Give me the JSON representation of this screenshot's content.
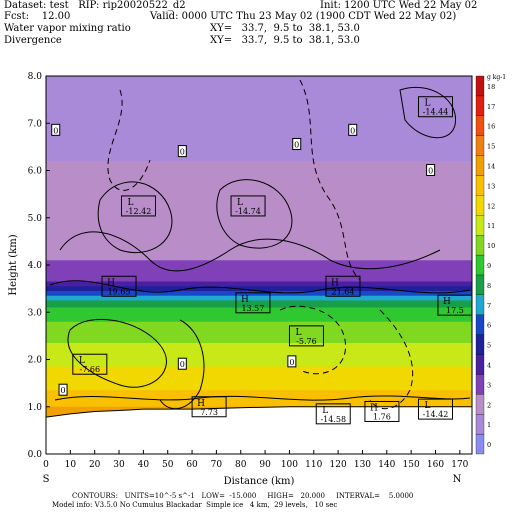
{
  "header": {
    "dataset_line": "Dataset: test   RIP: rip20020522_d2",
    "init_line": "Init: 1200 UTC Wed 22 May 02",
    "fcst_line": "Fcst:    12.00",
    "valid_line": "Valid: 0000 UTC Thu 23 May 02 (1900 CDT Wed 22 May 02)",
    "field1_name": "Water vapor mixing ratio",
    "field1_xy": "XY=   33.7,  9.5 to  38.1, 53.0",
    "field2_name": "Divergence",
    "field2_xy": "XY=   33.7,  9.5 to  38.1, 53.0"
  },
  "chart_data": {
    "type": "heatmap",
    "xlabel": "Distance (km)",
    "ylabel": "Height (km)",
    "xlim": [
      0,
      175
    ],
    "ylim": [
      0,
      8.0
    ],
    "x_ticks": [
      0,
      10,
      20,
      30,
      40,
      50,
      60,
      70,
      80,
      90,
      100,
      110,
      120,
      130,
      140,
      150,
      160,
      170
    ],
    "y_ticks": [
      "0.0",
      "1.0",
      "2.0",
      "3.0",
      "4.0",
      "5.0",
      "6.0",
      "7.0",
      "8.0"
    ],
    "endpoint_left": "S",
    "endpoint_right": "N",
    "colorbar": {
      "unit": "g kg-1",
      "levels": [
        0,
        1,
        2,
        3,
        4,
        5,
        6,
        7,
        8,
        9,
        10,
        11,
        12,
        13,
        14,
        15,
        16,
        17,
        18
      ],
      "colors": [
        "#8c8cf0",
        "#a88ad8",
        "#b98ec8",
        "#8040b8",
        "#4a20a0",
        "#20209a",
        "#1848c8",
        "#20a8d0",
        "#18a048",
        "#30c830",
        "#80d820",
        "#c8e818",
        "#f0d800",
        "#f8c000",
        "#f0a000",
        "#f08010",
        "#f05010",
        "#e02010",
        "#c01010"
      ]
    },
    "humidity_layers": [
      {
        "height_km": 8.0,
        "value": 0.5
      },
      {
        "height_km": 6.5,
        "value": 1.0
      },
      {
        "height_km": 6.2,
        "value": 2.0
      },
      {
        "height_km": 4.1,
        "value": 2.5
      },
      {
        "height_km": 3.75,
        "value": 3.0
      },
      {
        "height_km": 3.65,
        "value": 4.0
      },
      {
        "height_km": 3.55,
        "value": 5.0
      },
      {
        "height_km": 3.45,
        "value": 6.0
      },
      {
        "height_km": 3.35,
        "value": 7.0
      },
      {
        "height_km": 3.25,
        "value": 8.0
      },
      {
        "height_km": 3.1,
        "value": 9.0
      },
      {
        "height_km": 2.8,
        "value": 10.0
      },
      {
        "height_km": 2.35,
        "value": 11.0
      },
      {
        "height_km": 1.85,
        "value": 12.0
      },
      {
        "height_km": 1.35,
        "value": 13.0
      },
      {
        "height_km": 1.0,
        "value": 14.0
      }
    ],
    "terrain_km": [
      [
        0,
        0.78
      ],
      [
        10,
        0.85
      ],
      [
        20,
        0.9
      ],
      [
        30,
        0.92
      ],
      [
        40,
        0.95
      ],
      [
        60,
        0.95
      ],
      [
        80,
        0.98
      ],
      [
        100,
        1.0
      ],
      [
        120,
        1.0
      ],
      [
        140,
        1.0
      ],
      [
        160,
        1.0
      ],
      [
        170,
        1.0
      ]
    ],
    "extrema": [
      {
        "type": "L",
        "value": "-14.44",
        "x": 160,
        "y": 7.35
      },
      {
        "type": "L",
        "value": "-12.42",
        "x": 38,
        "y": 5.25
      },
      {
        "type": "L",
        "value": "-14.74",
        "x": 83,
        "y": 5.25
      },
      {
        "type": "H",
        "value": "19.65",
        "x": 30,
        "y": 3.55
      },
      {
        "type": "H",
        "value": "21.64",
        "x": 122,
        "y": 3.55
      },
      {
        "type": "H",
        "value": "13.57",
        "x": 85,
        "y": 3.2
      },
      {
        "type": "H",
        "value": "17.5",
        "x": 168,
        "y": 3.15
      },
      {
        "type": "L",
        "value": "-5.76",
        "x": 107,
        "y": 2.5
      },
      {
        "type": "L",
        "value": "-7.66",
        "x": 18,
        "y": 1.9
      },
      {
        "type": "H",
        "value": "7.73",
        "x": 67,
        "y": 1.0
      },
      {
        "type": "L",
        "value": "-14.58",
        "x": 118,
        "y": 0.85
      },
      {
        "type": "H",
        "value": "1.76",
        "x": 138,
        "y": 0.9
      },
      {
        "type": "L",
        "value": "-14.42",
        "x": 160,
        "y": 0.95
      }
    ],
    "zero_labels": [
      {
        "text": "0",
        "x": 4,
        "y": 6.85
      },
      {
        "text": "0",
        "x": 56,
        "y": 6.4
      },
      {
        "text": "0",
        "x": 103,
        "y": 6.55
      },
      {
        "text": "0",
        "x": 126,
        "y": 6.85
      },
      {
        "text": "0",
        "x": 158,
        "y": 6.0
      },
      {
        "text": "0",
        "x": 7,
        "y": 1.35
      },
      {
        "text": "0",
        "x": 56,
        "y": 1.9
      },
      {
        "text": "0",
        "x": 101,
        "y": 1.95
      }
    ]
  },
  "footer": {
    "contours_line": "CONTOURS:   UNITS=10^-5 s^-1   LOW=  -15.000     HIGH=   20.000     INTERVAL=    5.0000",
    "model_line": "Model info: V3.5.0 No Cumulus Blackadar  Simple ice   4 km,  29 levels,   10 sec"
  }
}
